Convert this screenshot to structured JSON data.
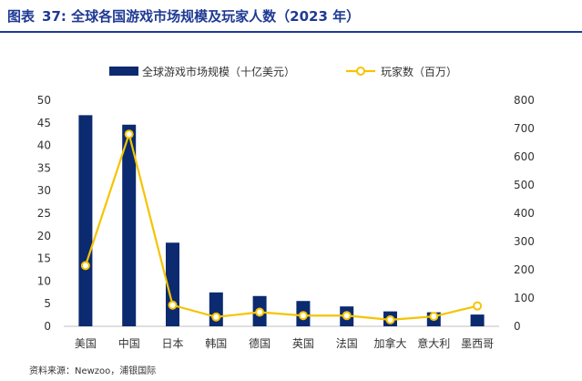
{
  "figure": {
    "label": "图表",
    "number": "37:",
    "title": "全球各国游戏市场规模及玩家人数（2023 年）"
  },
  "source": "资料来源：Newzoo，浦银国际",
  "chart_data": {
    "type": "bar",
    "categories": [
      "美国",
      "中国",
      "日本",
      "韩国",
      "德国",
      "英国",
      "法国",
      "加拿大",
      "意大利",
      "墨西哥"
    ],
    "series": [
      {
        "name": "全球游戏市场规模（十亿美元）",
        "type": "bar",
        "axis": "left",
        "color": "#0b2a6f",
        "values": [
          46.7,
          44.6,
          18.5,
          7.5,
          6.7,
          5.6,
          4.4,
          3.3,
          3.1,
          2.6
        ]
      },
      {
        "name": "玩家数（百万）",
        "type": "line",
        "axis": "right",
        "color": "#f5c400",
        "values": [
          215,
          680,
          75,
          33,
          50,
          38,
          38,
          23,
          35,
          72
        ]
      }
    ],
    "y_left": {
      "min": 0,
      "max": 50,
      "step": 5
    },
    "y_right": {
      "min": 0,
      "max": 800,
      "step": 100
    },
    "legend_position": "top-center",
    "grid": false
  }
}
